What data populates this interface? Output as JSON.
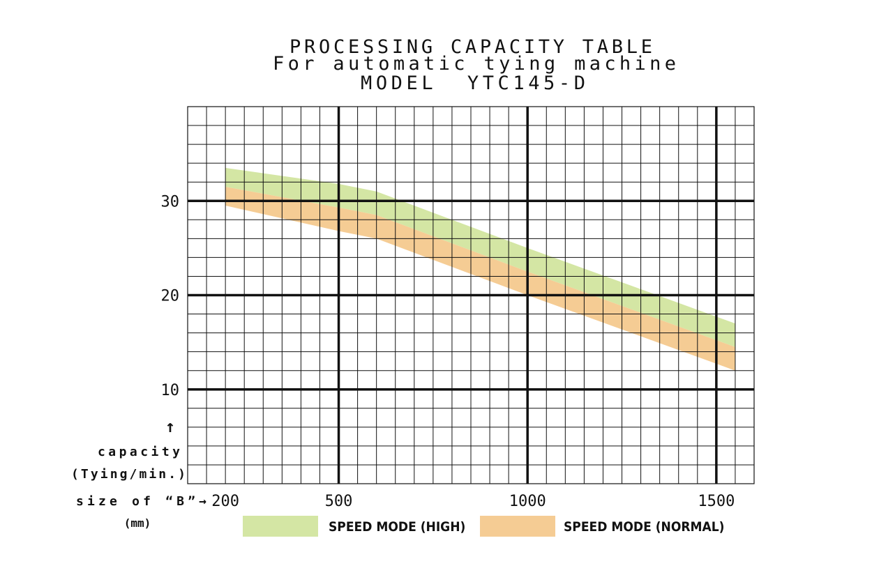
{
  "chart_data": {
    "type": "area",
    "title": "PROCESSING CAPACITY TABLE",
    "subtitle": "For automatic tying machine",
    "model": "MODEL  YTC145-D",
    "ylabel_arrow": "↑",
    "ylabel": "capacity",
    "ylabel_unit": "(Tying/min.)",
    "xlabel": "size of “B”→",
    "xlabel_unit": "(mm)",
    "xlim": [
      100,
      1600
    ],
    "ylim": [
      0,
      40
    ],
    "x_ticks": [
      200,
      500,
      1000,
      1500
    ],
    "y_ticks": [
      10,
      20,
      30
    ],
    "grid": true,
    "legend_position": "bottom",
    "series": [
      {
        "name": "SPEED MODE (HIGH)",
        "color": "#d4e6a4",
        "x": [
          200,
          500,
          600,
          1000,
          1550
        ],
        "upper": [
          33.5,
          31.8,
          31.0,
          25.0,
          17.0
        ],
        "lower": [
          31.5,
          29.3,
          28.5,
          22.5,
          14.5
        ]
      },
      {
        "name": "SPEED MODE (NORMAL)",
        "color": "#f5cc94",
        "x": [
          200,
          500,
          600,
          1000,
          1550
        ],
        "upper": [
          31.5,
          29.3,
          28.5,
          22.5,
          14.5
        ],
        "lower": [
          29.5,
          26.8,
          26.0,
          20.0,
          12.0
        ]
      }
    ]
  }
}
